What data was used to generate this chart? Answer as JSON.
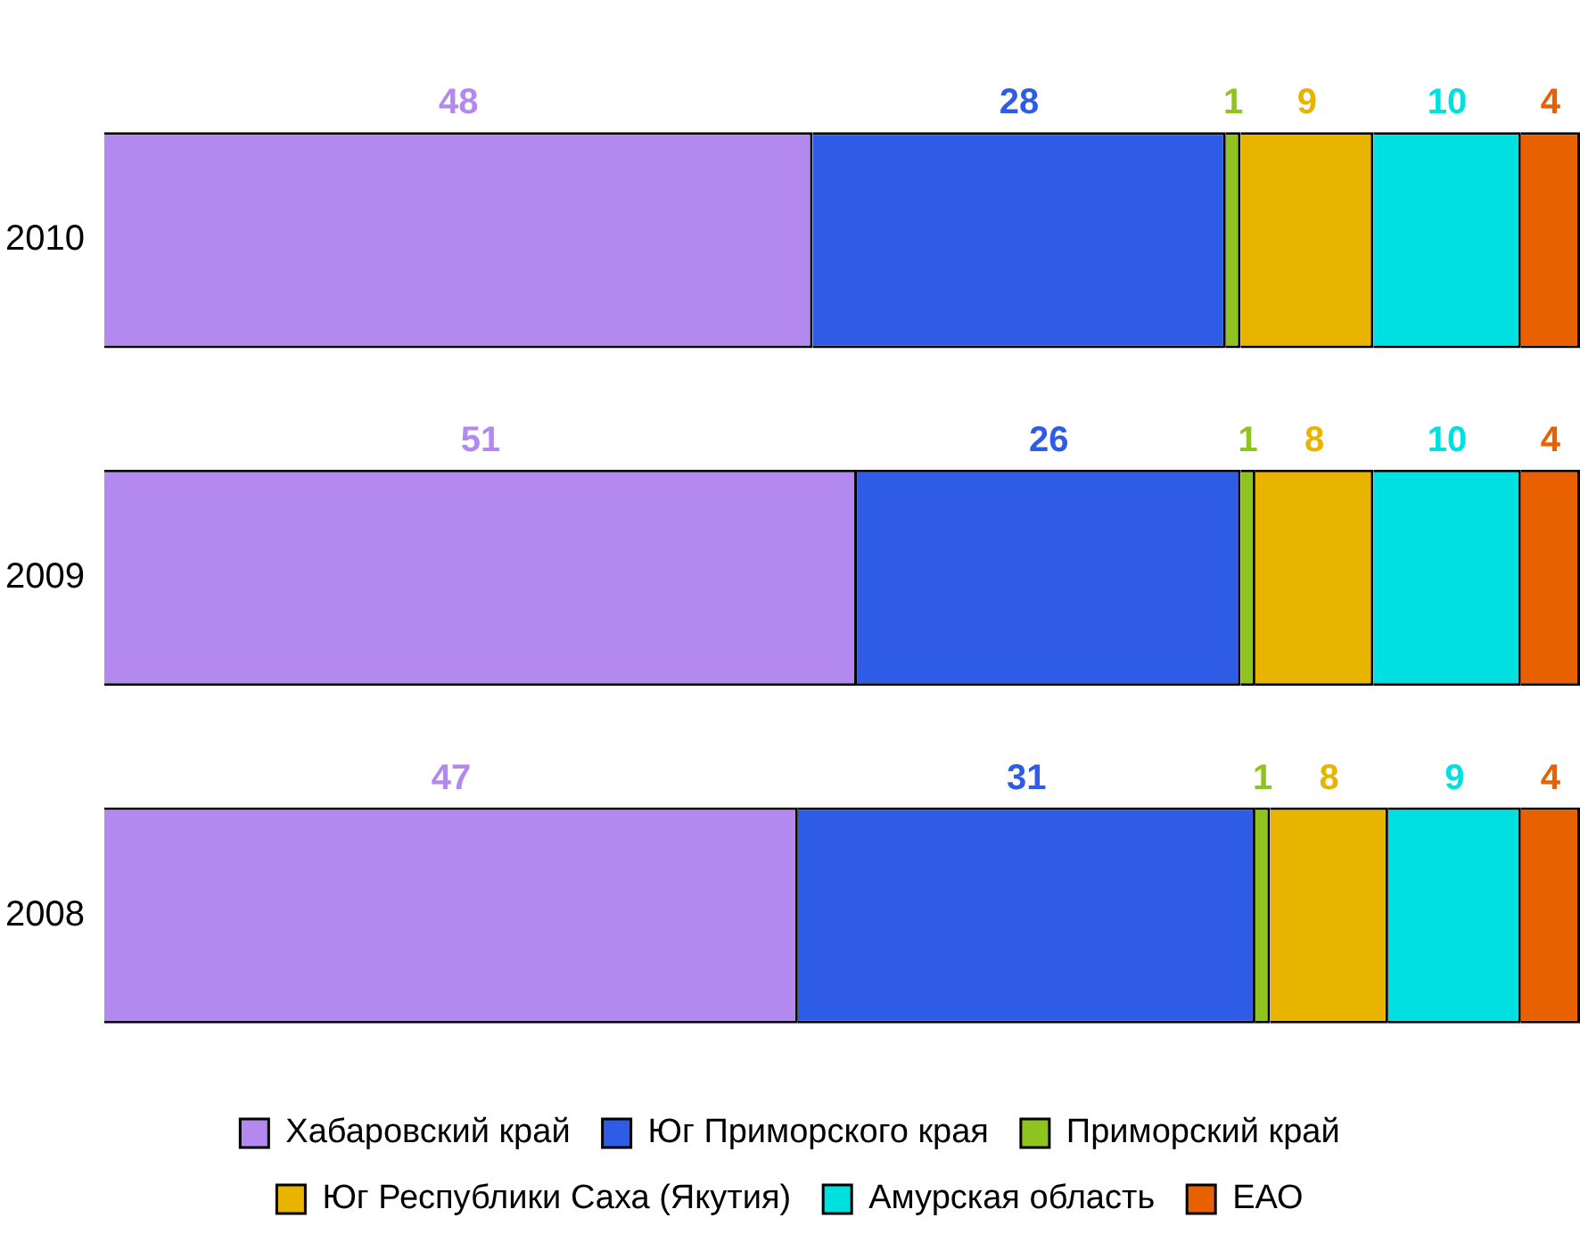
{
  "chart_data": {
    "type": "bar",
    "orientation": "horizontal",
    "stacked": true,
    "categories": [
      "2010",
      "2009",
      "2008"
    ],
    "series": [
      {
        "name": "Хабаровский край",
        "color": "#b389f0",
        "values": [
          48,
          51,
          47
        ]
      },
      {
        "name": "Юг Приморского края",
        "color": "#2f5ce6",
        "values": [
          28,
          26,
          31
        ]
      },
      {
        "name": "Приморский край",
        "color": "#8fc31f",
        "values": [
          1,
          1,
          1
        ]
      },
      {
        "name": "Юг Республики Саха (Якутия)",
        "color": "#e8b400",
        "values": [
          9,
          8,
          8
        ]
      },
      {
        "name": "Амурская область",
        "color": "#00e0e0",
        "values": [
          10,
          10,
          9
        ]
      },
      {
        "name": "ЕАО",
        "color": "#e86000",
        "values": [
          4,
          4,
          4
        ]
      }
    ],
    "xlim": [
      0,
      100
    ],
    "data_labels": true,
    "tick_labels": "y",
    "legend": "bottom"
  }
}
